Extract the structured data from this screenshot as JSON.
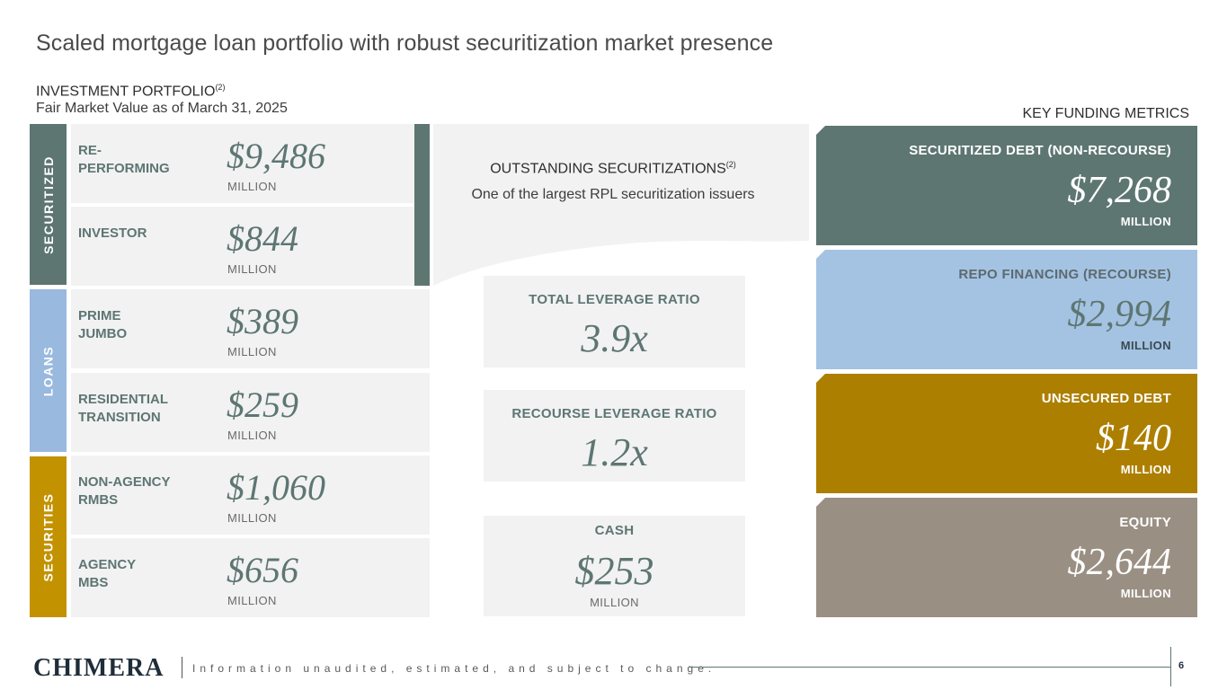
{
  "header": {
    "title": "Scaled mortgage loan portfolio with robust securitization market presence",
    "portfolio_heading": "INVESTMENT PORTFOLIO",
    "portfolio_heading_note": "(2)",
    "portfolio_sub": "Fair Market Value as of March 31, 2025",
    "key_heading": "KEY FUNDING METRICS"
  },
  "categories": {
    "securitized": "SECURITIZED",
    "loans": "LOANS",
    "securities": "SECURITIES"
  },
  "portfolio": [
    {
      "label": "RE-\nPERFORMING",
      "value": "$9,486",
      "unit": "MILLION"
    },
    {
      "label": "INVESTOR",
      "value": "$844",
      "unit": "MILLION"
    },
    {
      "label": "PRIME\nJUMBO",
      "value": "$389",
      "unit": "MILLION"
    },
    {
      "label": "RESIDENTIAL\nTRANSITION",
      "value": "$259",
      "unit": "MILLION"
    },
    {
      "label": "NON-AGENCY\nRMBS",
      "value": "$1,060",
      "unit": "MILLION"
    },
    {
      "label": "AGENCY\nMBS",
      "value": "$656",
      "unit": "MILLION"
    }
  ],
  "outstanding": {
    "label": "OUTSTANDING SECURITIZATIONS",
    "note": "(2)",
    "sub": "One of the largest RPL securitization issuers"
  },
  "metrics": {
    "total_leverage": {
      "label": "TOTAL LEVERAGE RATIO",
      "value": "3.9x"
    },
    "recourse_leverage": {
      "label": "RECOURSE LEVERAGE RATIO",
      "value": "1.2x"
    },
    "cash": {
      "label": "CASH",
      "value": "$253",
      "unit": "MILLION"
    }
  },
  "funding": [
    {
      "label": "SECURITIZED DEBT (NON-RECOURSE)",
      "value": "$7,268",
      "unit": "MILLION"
    },
    {
      "label": "REPO FINANCING (RECOURSE)",
      "value": "$2,994",
      "unit": "MILLION"
    },
    {
      "label": "UNSECURED DEBT",
      "value": "$140",
      "unit": "MILLION"
    },
    {
      "label": "EQUITY",
      "value": "$2,644",
      "unit": "MILLION"
    }
  ],
  "footer": {
    "logo": "CHIMERA",
    "disclaimer": "Information unaudited, estimated, and subject to change.",
    "page_number": "6"
  },
  "colors": {
    "slate": "#5d7672",
    "blue": "#a4c3e3",
    "gold": "#ad7f00",
    "taupe": "#9a8f83",
    "panel": "#f2f2f2"
  }
}
